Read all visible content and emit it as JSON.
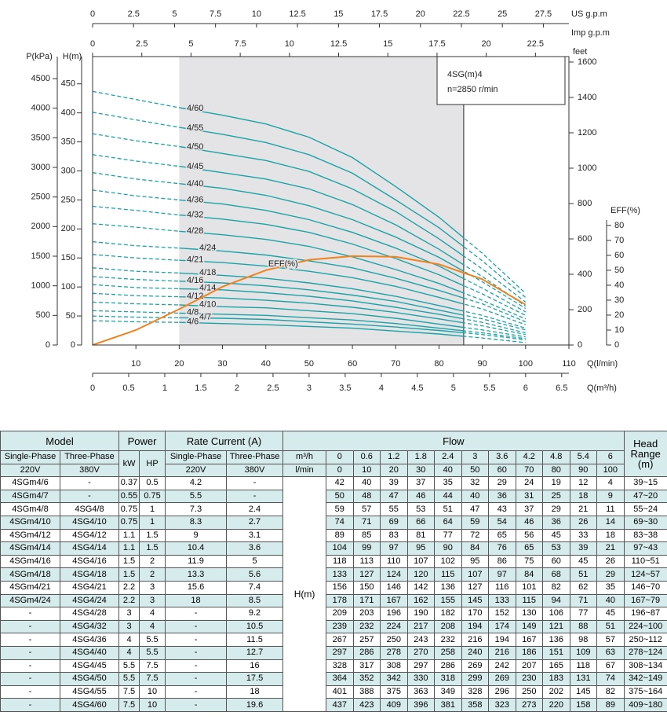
{
  "chart_data": {
    "type": "line",
    "title": "4SG(m)4",
    "subtitle": "n=2850 r/min",
    "x": [
      0,
      10,
      20,
      30,
      40,
      50,
      60,
      70,
      80,
      90,
      100
    ],
    "xlim": [
      0,
      110
    ],
    "xticks": [
      10,
      20,
      30,
      40,
      50,
      60,
      70,
      80,
      90,
      100,
      110
    ],
    "xlabel": "Q(l/min)",
    "ylim": [
      0,
      497
    ],
    "yticks": [
      0,
      50,
      100,
      150,
      200,
      250,
      300,
      350,
      400,
      450
    ],
    "ylabel": "H(m)",
    "grid": false,
    "shaded_range": [
      20,
      85.7
    ],
    "axes": {
      "pressure": {
        "label": "P(kPa)",
        "lim": [
          0,
          4872
        ],
        "ticks": [
          0,
          500,
          1000,
          1500,
          2000,
          2500,
          3000,
          3500,
          4000,
          4500
        ]
      },
      "feet": {
        "label": "feet",
        "lim": [
          0,
          1631
        ],
        "ticks": [
          0,
          200,
          400,
          600,
          800,
          1000,
          1200,
          1400,
          1600
        ]
      },
      "eff": {
        "label": "EFF(%)",
        "lim": [
          0,
          193
        ],
        "ticks": [
          0,
          10,
          20,
          30,
          40,
          50,
          60,
          70,
          80
        ]
      },
      "us_gpm": {
        "label": "US g.p.m",
        "lim": [
          0,
          29.06
        ],
        "ticks": [
          0,
          2.5,
          5,
          7.5,
          10,
          12.5,
          15,
          17.5,
          20,
          22.5,
          25,
          27.5
        ]
      },
      "imp_gpm": {
        "label": "Imp g.p.m",
        "lim": [
          0,
          24.2
        ],
        "ticks": [
          0,
          2.5,
          5,
          7.5,
          10,
          12.5,
          15,
          17.5,
          20,
          22.5
        ]
      },
      "m3h": {
        "label": "Q(m³/h)",
        "lim": [
          0,
          6.6
        ],
        "ticks": [
          0,
          0.5,
          1,
          1.5,
          2,
          2.5,
          3,
          3.5,
          4,
          4.5,
          5,
          5.5,
          6,
          6.5
        ]
      }
    },
    "series": [
      {
        "name": "4/6",
        "color": "#1aa3a6",
        "values": [
          42,
          40,
          39,
          37,
          35,
          32,
          29,
          24,
          19,
          12,
          4
        ]
      },
      {
        "name": "4/7",
        "color": "#1aa3a6",
        "values": [
          50,
          48,
          47,
          46,
          44,
          40,
          36,
          31,
          25,
          18,
          9
        ]
      },
      {
        "name": "4/8",
        "color": "#1aa3a6",
        "values": [
          59,
          57,
          55,
          53,
          51,
          47,
          43,
          37,
          29,
          21,
          11
        ]
      },
      {
        "name": "4/10",
        "color": "#1aa3a6",
        "values": [
          74,
          71,
          69,
          66,
          64,
          59,
          54,
          46,
          36,
          26,
          14
        ]
      },
      {
        "name": "4/12",
        "color": "#1aa3a6",
        "values": [
          89,
          85,
          83,
          81,
          77,
          72,
          65,
          56,
          45,
          33,
          18
        ]
      },
      {
        "name": "4/14",
        "color": "#1aa3a6",
        "values": [
          104,
          99,
          97,
          95,
          90,
          84,
          76,
          65,
          53,
          39,
          21
        ]
      },
      {
        "name": "4/16",
        "color": "#1aa3a6",
        "values": [
          118,
          113,
          110,
          107,
          102,
          95,
          86,
          75,
          60,
          45,
          26
        ]
      },
      {
        "name": "4/18",
        "color": "#1aa3a6",
        "values": [
          133,
          127,
          124,
          120,
          115,
          107,
          97,
          84,
          68,
          51,
          29
        ]
      },
      {
        "name": "4/21",
        "color": "#1aa3a6",
        "values": [
          156,
          150,
          146,
          142,
          136,
          127,
          116,
          101,
          82,
          62,
          35
        ]
      },
      {
        "name": "4/24",
        "color": "#1aa3a6",
        "values": [
          178,
          171,
          167,
          162,
          155,
          145,
          133,
          115,
          94,
          71,
          40
        ]
      },
      {
        "name": "4/28",
        "color": "#1aa3a6",
        "values": [
          209,
          203,
          196,
          190,
          182,
          170,
          152,
          130,
          106,
          77,
          45
        ]
      },
      {
        "name": "4/32",
        "color": "#1aa3a6",
        "values": [
          239,
          232,
          224,
          217,
          208,
          194,
          174,
          149,
          121,
          88,
          51
        ]
      },
      {
        "name": "4/36",
        "color": "#1aa3a6",
        "values": [
          267,
          257,
          250,
          243,
          232,
          216,
          194,
          167,
          136,
          98,
          57
        ]
      },
      {
        "name": "4/40",
        "color": "#1aa3a6",
        "values": [
          297,
          286,
          278,
          270,
          258,
          240,
          216,
          186,
          151,
          109,
          63
        ]
      },
      {
        "name": "4/45",
        "color": "#1aa3a6",
        "values": [
          328,
          317,
          308,
          297,
          286,
          269,
          242,
          207,
          165,
          118,
          67
        ]
      },
      {
        "name": "4/50",
        "color": "#1aa3a6",
        "values": [
          364,
          352,
          342,
          330,
          318,
          299,
          269,
          230,
          183,
          131,
          74
        ]
      },
      {
        "name": "4/55",
        "color": "#1aa3a6",
        "values": [
          401,
          388,
          375,
          363,
          349,
          328,
          296,
          250,
          202,
          145,
          82
        ]
      },
      {
        "name": "4/60",
        "color": "#1aa3a6",
        "values": [
          437,
          423,
          409,
          396,
          381,
          358,
          323,
          273,
          220,
          158,
          89
        ]
      }
    ],
    "efficiency": {
      "name": "EFF(%)",
      "color": "#f0821e",
      "axis": "eff",
      "values": [
        0,
        10,
        24,
        39,
        50,
        57,
        59.5,
        59,
        54,
        44,
        27
      ]
    }
  },
  "table": {
    "headers": {
      "model": "Model",
      "power": "Power",
      "current": "Rate Current (A)",
      "flow": "Flow",
      "head": "Head Range (m)",
      "single_phase": "Single-Phase",
      "three_phase": "Three-Phase",
      "v220": "220V",
      "v380": "380V",
      "kw": "kW",
      "hp": "HP",
      "m3h": "m³/h",
      "lmin": "l/min",
      "h": "H(m)"
    },
    "flow_m3h": [
      0,
      0.6,
      1.2,
      1.8,
      2.4,
      3,
      3.6,
      4.2,
      4.8,
      5.4,
      6
    ],
    "rows": [
      [
        "4SGm4/6",
        "-",
        0.37,
        0.5,
        4.2,
        "-",
        "39~15"
      ],
      [
        "4SGm4/7",
        "-",
        0.55,
        0.75,
        5.5,
        "-",
        "47~20"
      ],
      [
        "4SGm4/8",
        "4SG4/8",
        0.75,
        1,
        7.3,
        2.4,
        "55~24"
      ],
      [
        "4SGm4/10",
        "4SG4/10",
        0.75,
        1,
        8.3,
        2.7,
        "69~30"
      ],
      [
        "4SGm4/12",
        "4SG4/12",
        1.1,
        1.5,
        9,
        3.1,
        "83~38"
      ],
      [
        "4SGm4/14",
        "4SG4/14",
        1.1,
        1.5,
        10.4,
        3.6,
        "97~43"
      ],
      [
        "4SGm4/16",
        "4SG4/16",
        1.5,
        2,
        11.9,
        5,
        "110~51"
      ],
      [
        "4SGm4/18",
        "4SG4/18",
        1.5,
        2,
        13.3,
        5.6,
        "124~57"
      ],
      [
        "4SGm4/21",
        "4SG4/21",
        2.2,
        3,
        15.6,
        7.4,
        "146~70"
      ],
      [
        "4SGm4/24",
        "4SG4/24",
        2.2,
        3,
        18,
        8.5,
        "167~79"
      ],
      [
        "-",
        "4SG4/28",
        3,
        4,
        "-",
        9.2,
        "196~87"
      ],
      [
        "-",
        "4SG4/32",
        3,
        4,
        "-",
        10.5,
        "224~100"
      ],
      [
        "-",
        "4SG4/36",
        4,
        5.5,
        "-",
        11.5,
        "250~112"
      ],
      [
        "-",
        "4SG4/40",
        4,
        5.5,
        "-",
        12.7,
        "278~124"
      ],
      [
        "-",
        "4SG4/45",
        5.5,
        7.5,
        "-",
        16,
        "308~134"
      ],
      [
        "-",
        "4SG4/50",
        5.5,
        7.5,
        "-",
        17.5,
        "342~149"
      ],
      [
        "-",
        "4SG4/55",
        7.5,
        10,
        "-",
        18,
        "375~164"
      ],
      [
        "-",
        "4SG4/60",
        7.5,
        10,
        "-",
        19.6,
        "409~180"
      ]
    ]
  }
}
